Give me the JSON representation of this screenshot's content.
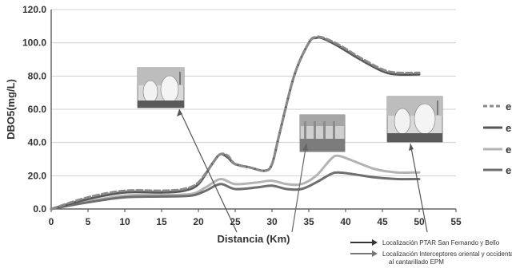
{
  "chart_data": {
    "type": "line",
    "xlabel": "Distancia (Km)",
    "ylabel": "DBO5(mg/L)",
    "xlim": [
      0,
      55
    ],
    "ylim": [
      0,
      120
    ],
    "x_ticks": [
      "0",
      "5",
      "10",
      "15",
      "20",
      "25",
      "30",
      "35",
      "40",
      "45",
      "50",
      "55"
    ],
    "y_ticks": [
      "0.0",
      "20.0",
      "40.0",
      "60.0",
      "80.0",
      "100.0",
      "120.0"
    ],
    "grid": true,
    "legend_position": "right",
    "series": [
      {
        "name": "e",
        "color": "#8a8a8a",
        "dashed": true,
        "points": [
          [
            0,
            0
          ],
          [
            5,
            7
          ],
          [
            10,
            11
          ],
          [
            15,
            11
          ],
          [
            18,
            12
          ],
          [
            20,
            16
          ],
          [
            22,
            28
          ],
          [
            23,
            33
          ],
          [
            24,
            32
          ],
          [
            25,
            27
          ],
          [
            27,
            25
          ],
          [
            29,
            23
          ],
          [
            30,
            27
          ],
          [
            31,
            45
          ],
          [
            33,
            80
          ],
          [
            35,
            100
          ],
          [
            36,
            103.5
          ],
          [
            37,
            103
          ],
          [
            39,
            99
          ],
          [
            42,
            91
          ],
          [
            45,
            84
          ],
          [
            47,
            82
          ],
          [
            50,
            82
          ]
        ]
      },
      {
        "name": "e",
        "color": "#555555",
        "dashed": false,
        "points": [
          [
            0,
            0
          ],
          [
            5,
            6
          ],
          [
            10,
            10
          ],
          [
            15,
            10
          ],
          [
            18,
            11
          ],
          [
            20,
            15
          ],
          [
            22,
            28
          ],
          [
            23,
            33
          ],
          [
            24,
            31
          ],
          [
            25,
            27
          ],
          [
            27,
            25
          ],
          [
            29,
            23
          ],
          [
            30,
            27
          ],
          [
            31,
            45
          ],
          [
            33,
            80
          ],
          [
            35,
            100
          ],
          [
            36,
            103
          ],
          [
            37,
            102.5
          ],
          [
            39,
            98
          ],
          [
            42,
            90
          ],
          [
            45,
            83
          ],
          [
            47,
            81
          ],
          [
            50,
            81
          ]
        ]
      },
      {
        "name": "e",
        "color": "#b3b3b3",
        "dashed": false,
        "points": [
          [
            0,
            0
          ],
          [
            5,
            4.5
          ],
          [
            10,
            8
          ],
          [
            15,
            8.5
          ],
          [
            19,
            9
          ],
          [
            21,
            13
          ],
          [
            23,
            18
          ],
          [
            25,
            15
          ],
          [
            28,
            16
          ],
          [
            30,
            17
          ],
          [
            32,
            15
          ],
          [
            34,
            15
          ],
          [
            36,
            20
          ],
          [
            38,
            30
          ],
          [
            39,
            32
          ],
          [
            41,
            29
          ],
          [
            44,
            24
          ],
          [
            47,
            22
          ],
          [
            50,
            22
          ]
        ]
      },
      {
        "name": "e",
        "color": "#6e6e6e",
        "dashed": false,
        "points": [
          [
            0,
            0
          ],
          [
            5,
            4
          ],
          [
            10,
            7
          ],
          [
            15,
            7.5
          ],
          [
            19,
            8
          ],
          [
            21,
            11
          ],
          [
            23,
            15
          ],
          [
            25,
            12
          ],
          [
            28,
            13
          ],
          [
            30,
            14
          ],
          [
            32,
            12
          ],
          [
            34,
            12
          ],
          [
            36,
            16
          ],
          [
            38,
            21
          ],
          [
            39,
            22
          ],
          [
            41,
            21
          ],
          [
            44,
            19
          ],
          [
            47,
            18
          ],
          [
            50,
            18
          ]
        ]
      }
    ]
  },
  "legend": [
    {
      "label": "e",
      "color": "#8a8a8a",
      "dashed": true
    },
    {
      "label": "e",
      "color": "#555555",
      "dashed": false
    },
    {
      "label": "e",
      "color": "#b3b3b3",
      "dashed": false
    },
    {
      "label": "e",
      "color": "#6e6e6e",
      "dashed": false
    }
  ],
  "footnote": {
    "item1": "Localización PTAR San Fernando y Bello",
    "item2_line1": "Localización Interceptores oriental y occidental",
    "item2_line2": "al cantarillado EPM",
    "item1_color": "#333333",
    "item2_color": "#777777"
  },
  "photos": [
    {
      "name": "treatment-plant-photo-1",
      "arrow_to_km": 23
    },
    {
      "name": "interceptor-photo",
      "arrow_to_km": 33
    },
    {
      "name": "treatment-plant-photo-2",
      "arrow_to_km": 49
    }
  ]
}
